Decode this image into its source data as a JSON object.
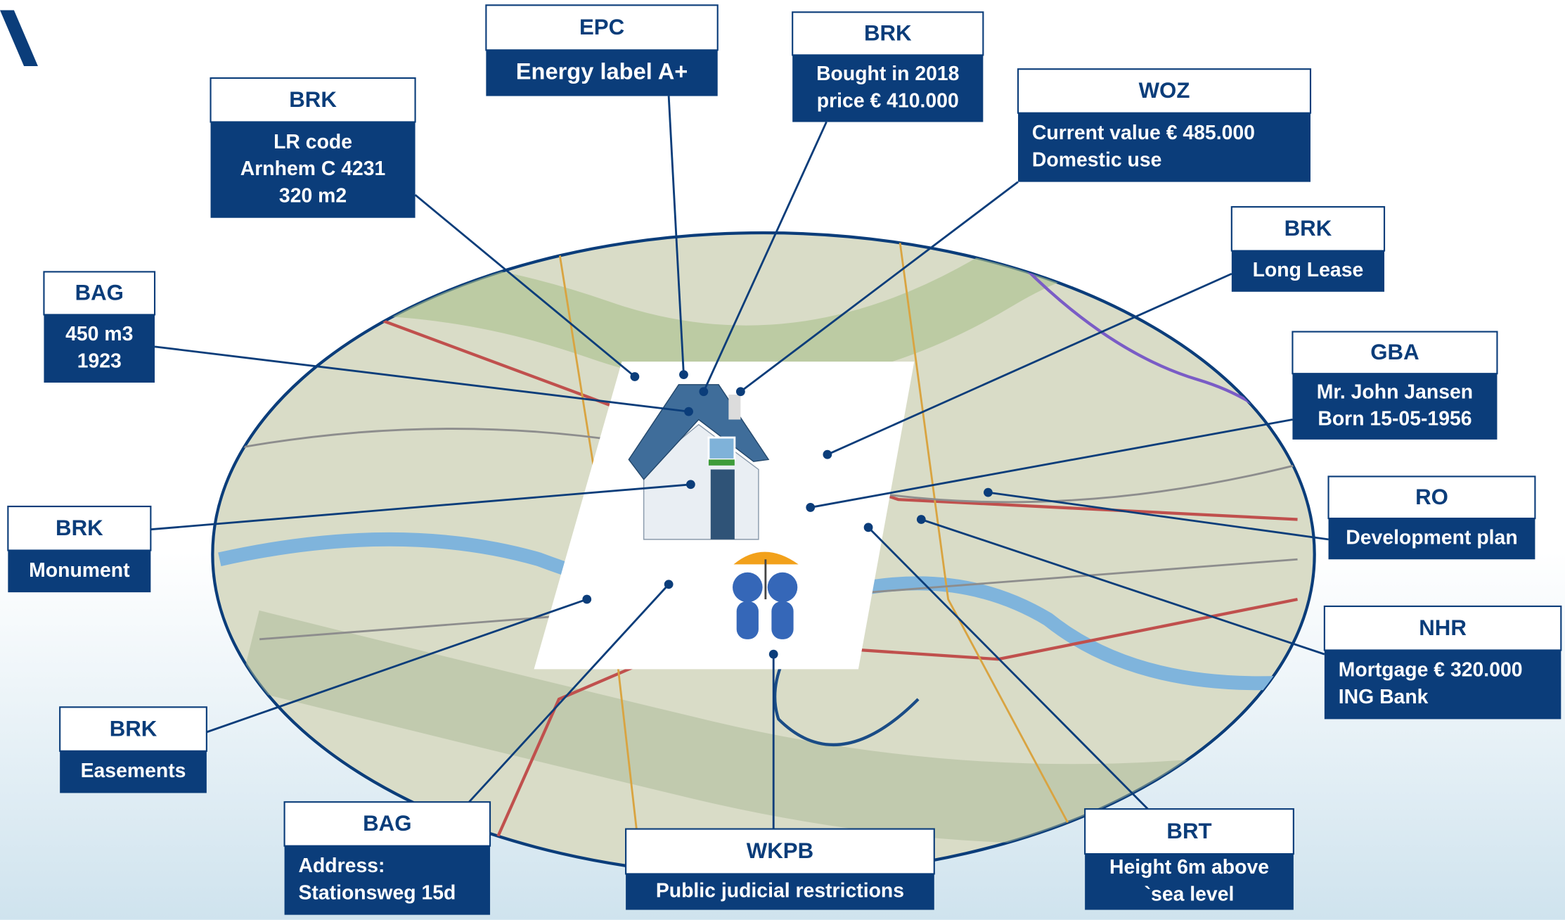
{
  "boxes": [
    {
      "header": "EPC",
      "lines": [
        "Energy label A+"
      ]
    },
    {
      "header": "BRK",
      "lines": [
        "Bought in 2018",
        "price € 410.000"
      ]
    },
    {
      "header": "BRK",
      "lines": [
        "LR code",
        "Arnhem C 4231",
        "320 m2"
      ]
    },
    {
      "header": "WOZ",
      "lines": [
        "Current value  € 485.000",
        "Domestic use"
      ]
    },
    {
      "header": "BRK",
      "lines": [
        "Long Lease"
      ]
    },
    {
      "header": "BAG",
      "lines": [
        "450 m3",
        "1923"
      ]
    },
    {
      "header": "GBA",
      "lines": [
        "Mr. John Jansen",
        "Born 15-05-1956"
      ]
    },
    {
      "header": "RO",
      "lines": [
        "Development plan"
      ]
    },
    {
      "header": "BRK",
      "lines": [
        "Monument"
      ]
    },
    {
      "header": "NHR",
      "lines": [
        "Mortgage € 320.000",
        "ING Bank"
      ]
    },
    {
      "header": "BRK",
      "lines": [
        "Easements"
      ]
    },
    {
      "header": "BAG",
      "lines": [
        "Address:",
        "Stationsweg 15d"
      ]
    },
    {
      "header": "WKPB",
      "lines": [
        "Public judicial restrictions"
      ]
    },
    {
      "header": "BRT",
      "lines": [
        "Height 6m above",
        "`sea level"
      ]
    }
  ]
}
